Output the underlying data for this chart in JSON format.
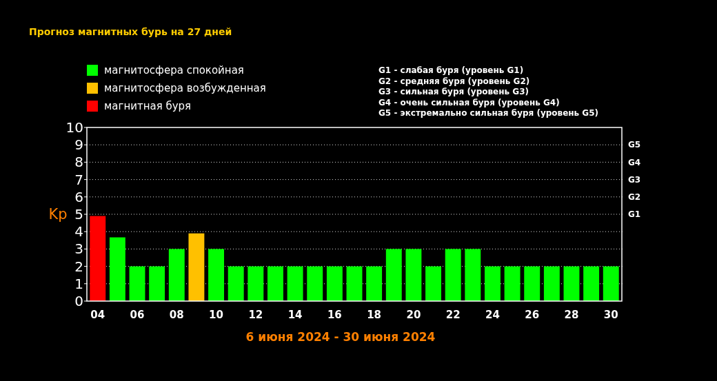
{
  "chart_data": {
    "type": "bar",
    "title": "Прогноз магнитных бурь на 27 дней",
    "xlabel": "6 июня 2024 - 30 июня 2024",
    "ylabel": "Kp",
    "categories": [
      "04",
      null,
      "06",
      null,
      "08",
      null,
      "10",
      null,
      "12",
      null,
      "14",
      null,
      "16",
      null,
      "18",
      null,
      "20",
      null,
      "22",
      null,
      "24",
      null,
      "26",
      null,
      "28",
      null,
      "30"
    ],
    "series": [
      {
        "name": "магнитосфера спокойная",
        "color": "#00ff00",
        "values": [
          null,
          3.67,
          2,
          2,
          3,
          null,
          3,
          2,
          2,
          2,
          2,
          2,
          2,
          2,
          2,
          3,
          3,
          2,
          3,
          3,
          2,
          2,
          2,
          2,
          2,
          2,
          2
        ]
      },
      {
        "name": "магнитосфера возбужденная",
        "color": "#ffc000",
        "values": [
          null,
          null,
          null,
          null,
          null,
          3.9,
          null,
          null,
          null,
          null,
          null,
          null,
          null,
          null,
          null,
          null,
          null,
          null,
          null,
          null,
          null,
          null,
          null,
          null,
          null,
          null,
          null
        ]
      },
      {
        "name": "магнитная буря",
        "color": "#ff0000",
        "values": [
          4.9,
          null,
          null,
          null,
          null,
          null,
          null,
          null,
          null,
          null,
          null,
          null,
          null,
          null,
          null,
          null,
          null,
          null,
          null,
          null,
          null,
          null,
          null,
          null,
          null,
          null,
          null
        ]
      }
    ],
    "ylim": [
      0,
      10
    ],
    "yticks": [
      0,
      1,
      2,
      3,
      4,
      5,
      6,
      7,
      8,
      9,
      10
    ],
    "grid": "y",
    "legend": "top left",
    "annotations": [
      "G1",
      "G2",
      "G3",
      "G4",
      "G5",
      "G1 - слабая буря (уровень G1)",
      "G2 - средняя буря (уровень G2)",
      "G3 - сильная буря (уровень G3)",
      "G4 - очень сильная буря (уровень G4)",
      "G5 - экстремально сильная буря (уровень G5)"
    ]
  }
}
